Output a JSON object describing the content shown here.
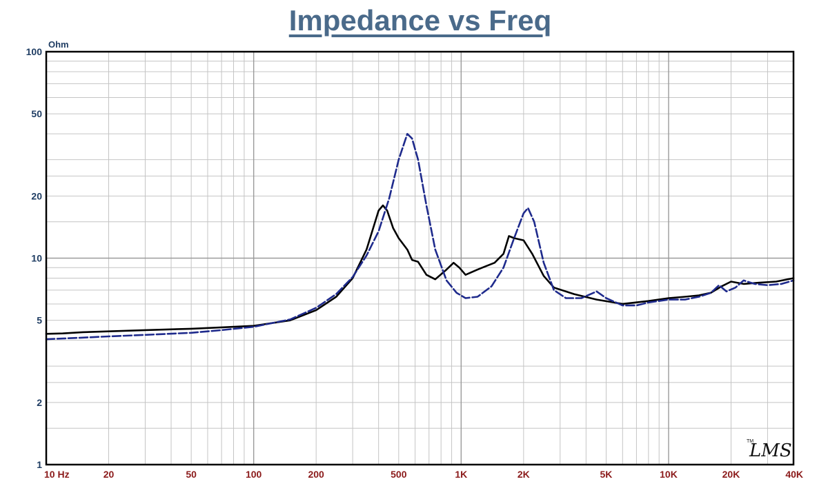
{
  "chart_data": {
    "type": "line",
    "title": "Impedance vs Freq",
    "y_unit": "Ohm",
    "x_scale": "log",
    "y_scale": "log",
    "xlim": [
      10,
      40000
    ],
    "ylim": [
      1,
      100
    ],
    "grid": true,
    "x_ticks": [
      {
        "v": 10,
        "label": "10  Hz"
      },
      {
        "v": 20,
        "label": "20"
      },
      {
        "v": 50,
        "label": "50"
      },
      {
        "v": 100,
        "label": "100"
      },
      {
        "v": 200,
        "label": "200"
      },
      {
        "v": 500,
        "label": "500"
      },
      {
        "v": 1000,
        "label": "1K"
      },
      {
        "v": 2000,
        "label": "2K"
      },
      {
        "v": 5000,
        "label": "5K"
      },
      {
        "v": 10000,
        "label": "10K"
      },
      {
        "v": 20000,
        "label": "20K"
      },
      {
        "v": 40000,
        "label": "40K"
      }
    ],
    "y_ticks": [
      {
        "v": 1,
        "label": "1"
      },
      {
        "v": 2,
        "label": "2"
      },
      {
        "v": 5,
        "label": "5"
      },
      {
        "v": 10,
        "label": "10"
      },
      {
        "v": 20,
        "label": "20"
      },
      {
        "v": 50,
        "label": "50"
      },
      {
        "v": 100,
        "label": "100"
      }
    ],
    "series": [
      {
        "color": "#000000",
        "style": "solid",
        "points": [
          [
            10,
            4.3
          ],
          [
            12,
            4.32
          ],
          [
            15,
            4.38
          ],
          [
            20,
            4.42
          ],
          [
            30,
            4.48
          ],
          [
            50,
            4.55
          ],
          [
            70,
            4.62
          ],
          [
            100,
            4.7
          ],
          [
            150,
            5.0
          ],
          [
            200,
            5.6
          ],
          [
            250,
            6.5
          ],
          [
            300,
            8.0
          ],
          [
            350,
            11.0
          ],
          [
            400,
            17.0
          ],
          [
            420,
            18.0
          ],
          [
            440,
            17.0
          ],
          [
            470,
            14.0
          ],
          [
            500,
            12.5
          ],
          [
            550,
            11.0
          ],
          [
            580,
            9.8
          ],
          [
            620,
            9.6
          ],
          [
            680,
            8.3
          ],
          [
            750,
            7.9
          ],
          [
            850,
            8.8
          ],
          [
            920,
            9.5
          ],
          [
            980,
            9.0
          ],
          [
            1050,
            8.3
          ],
          [
            1200,
            8.8
          ],
          [
            1300,
            9.1
          ],
          [
            1450,
            9.5
          ],
          [
            1600,
            10.5
          ],
          [
            1700,
            12.8
          ],
          [
            1800,
            12.5
          ],
          [
            2000,
            12.2
          ],
          [
            2200,
            10.5
          ],
          [
            2500,
            8.2
          ],
          [
            2800,
            7.2
          ],
          [
            3500,
            6.7
          ],
          [
            4500,
            6.3
          ],
          [
            6000,
            6.0
          ],
          [
            8000,
            6.2
          ],
          [
            10000,
            6.4
          ],
          [
            12000,
            6.5
          ],
          [
            14000,
            6.6
          ],
          [
            16000,
            6.8
          ],
          [
            18000,
            7.3
          ],
          [
            20000,
            7.7
          ],
          [
            23000,
            7.5
          ],
          [
            27000,
            7.6
          ],
          [
            33000,
            7.7
          ],
          [
            40000,
            8.0
          ]
        ]
      },
      {
        "color": "#1e2a8c",
        "style": "dashed",
        "points": [
          [
            10,
            4.05
          ],
          [
            12,
            4.08
          ],
          [
            15,
            4.12
          ],
          [
            20,
            4.18
          ],
          [
            30,
            4.25
          ],
          [
            50,
            4.35
          ],
          [
            70,
            4.48
          ],
          [
            100,
            4.65
          ],
          [
            150,
            5.05
          ],
          [
            200,
            5.75
          ],
          [
            250,
            6.7
          ],
          [
            300,
            8.1
          ],
          [
            350,
            10.3
          ],
          [
            400,
            13.5
          ],
          [
            450,
            19.5
          ],
          [
            500,
            30.0
          ],
          [
            550,
            40.0
          ],
          [
            580,
            38.0
          ],
          [
            620,
            30.0
          ],
          [
            680,
            18.0
          ],
          [
            750,
            11.0
          ],
          [
            850,
            7.8
          ],
          [
            950,
            6.8
          ],
          [
            1050,
            6.4
          ],
          [
            1200,
            6.5
          ],
          [
            1400,
            7.3
          ],
          [
            1600,
            9.0
          ],
          [
            1800,
            12.5
          ],
          [
            2000,
            16.5
          ],
          [
            2100,
            17.5
          ],
          [
            2250,
            15.0
          ],
          [
            2500,
            9.5
          ],
          [
            2800,
            7.0
          ],
          [
            3200,
            6.4
          ],
          [
            3800,
            6.4
          ],
          [
            4500,
            6.9
          ],
          [
            5000,
            6.4
          ],
          [
            6000,
            5.9
          ],
          [
            7000,
            5.9
          ],
          [
            8000,
            6.1
          ],
          [
            10000,
            6.3
          ],
          [
            12000,
            6.3
          ],
          [
            14000,
            6.5
          ],
          [
            16000,
            6.8
          ],
          [
            17500,
            7.4
          ],
          [
            19000,
            6.9
          ],
          [
            21000,
            7.2
          ],
          [
            23000,
            7.8
          ],
          [
            26000,
            7.5
          ],
          [
            30000,
            7.4
          ],
          [
            35000,
            7.5
          ],
          [
            40000,
            7.8
          ]
        ]
      }
    ]
  },
  "logo": {
    "text": "LMS",
    "tm": "TM"
  }
}
